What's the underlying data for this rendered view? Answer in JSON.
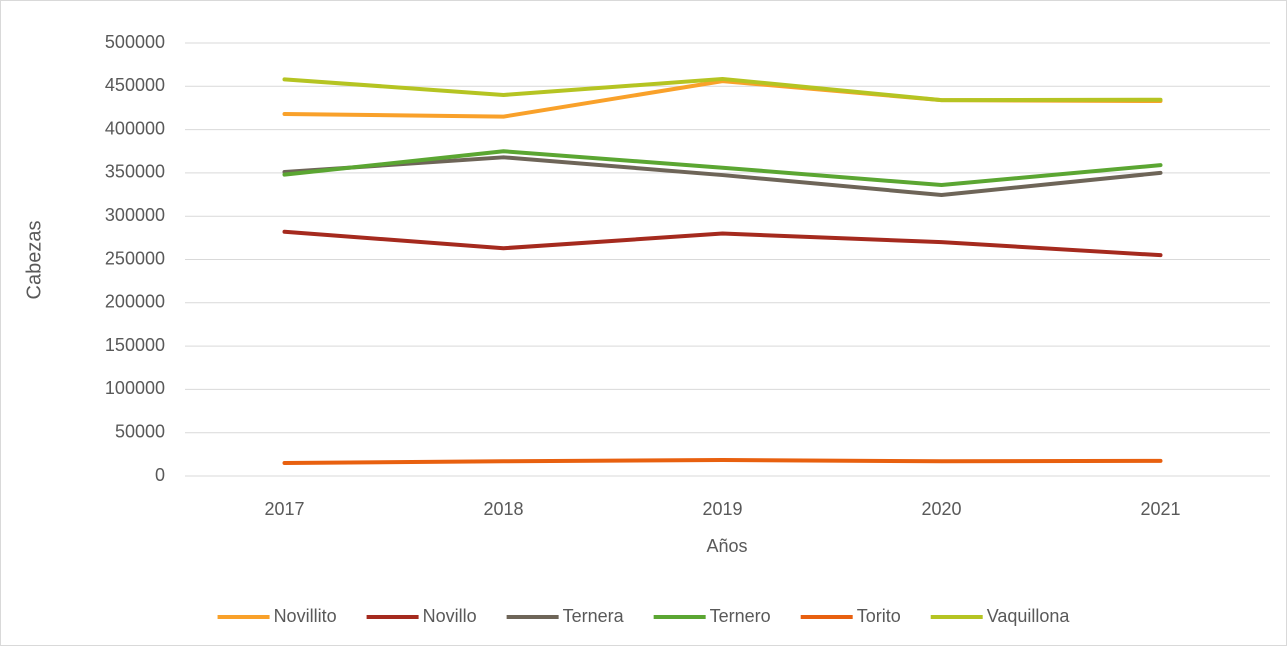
{
  "chart_data": {
    "type": "line",
    "x_label": "Años",
    "y_label": "Cabezas",
    "categories": [
      "2017",
      "2018",
      "2019",
      "2020",
      "2021"
    ],
    "series": [
      {
        "name": "Novillito",
        "color": "#f9a12a",
        "values": [
          418000,
          415000,
          456000,
          434000,
          433000
        ]
      },
      {
        "name": "Novillo",
        "color": "#a52a1e",
        "values": [
          282000,
          263000,
          280000,
          270000,
          255000
        ]
      },
      {
        "name": "Ternera",
        "color": "#6e6558",
        "values": [
          351000,
          368000,
          347500,
          324500,
          350000
        ]
      },
      {
        "name": "Ternero",
        "color": "#5ba632",
        "values": [
          348000,
          375000,
          356000,
          336000,
          359000
        ]
      },
      {
        "name": "Torito",
        "color": "#e8600f",
        "values": [
          15000,
          17000,
          18500,
          17000,
          17500
        ]
      },
      {
        "name": "Vaquillona",
        "color": "#b5c422",
        "values": [
          458000,
          440000,
          458500,
          434000,
          434500
        ]
      }
    ],
    "ylim": [
      0,
      500000
    ],
    "yticks": [
      0,
      50000,
      100000,
      150000,
      200000,
      250000,
      300000,
      350000,
      400000,
      450000,
      500000
    ],
    "grid": true,
    "legend": "bottom"
  }
}
